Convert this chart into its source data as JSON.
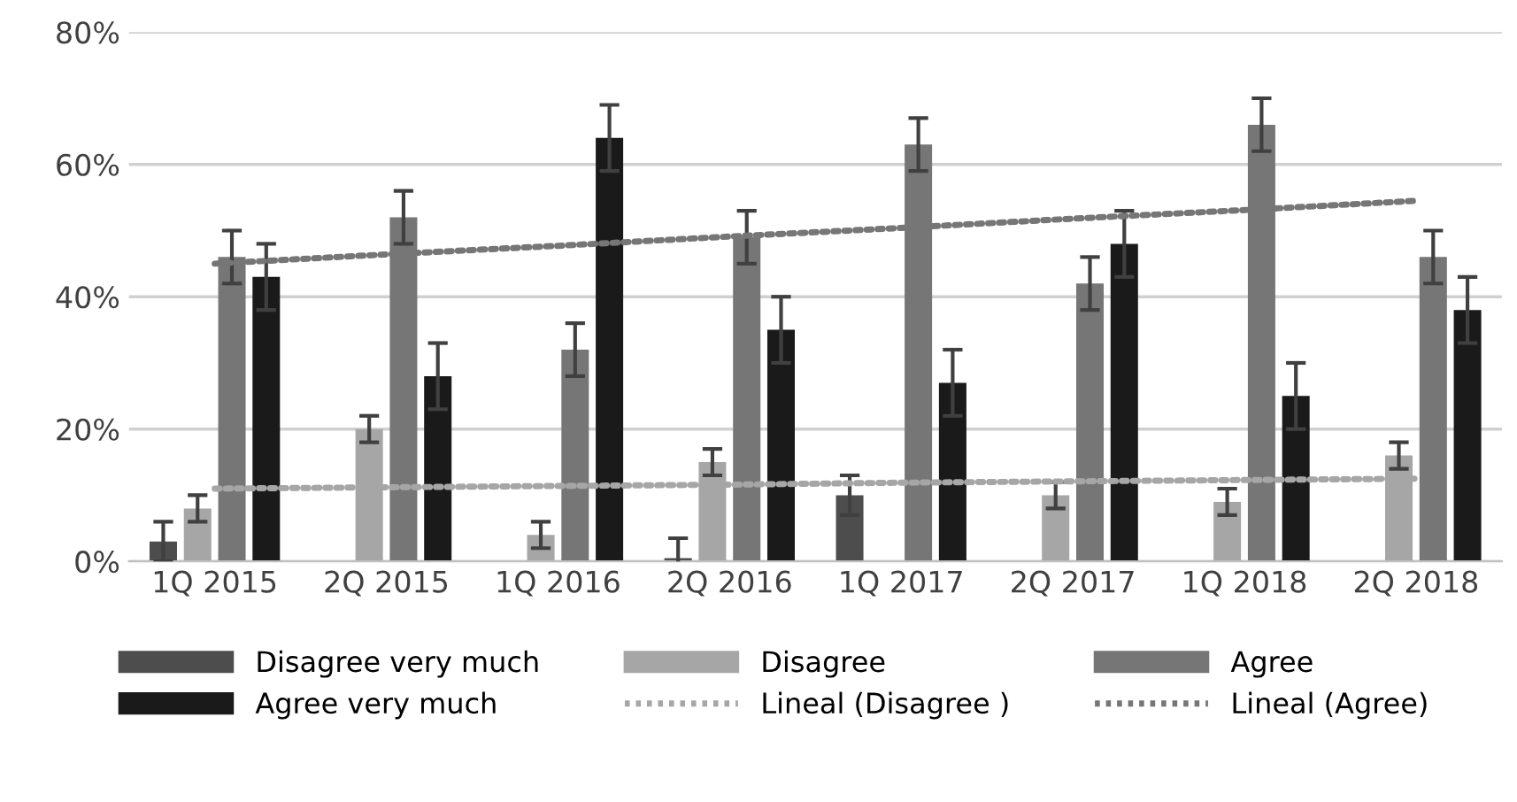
{
  "chart_data": {
    "type": "bar",
    "categories": [
      "1Q 2015",
      "2Q 2015",
      "1Q 2016",
      "2Q 2016",
      "1Q 2017",
      "2Q 2017",
      "1Q 2018",
      "2Q 2018"
    ],
    "series": [
      {
        "name": "Disagree very much",
        "color": "#4d4d4d",
        "values": [
          3,
          null,
          null,
          0.5,
          10,
          null,
          null,
          null
        ],
        "errors": [
          3,
          null,
          null,
          3,
          3,
          null,
          null,
          null
        ]
      },
      {
        "name": "Disagree",
        "color": "#a6a6a6",
        "values": [
          8,
          20,
          4,
          15,
          null,
          10,
          9,
          16
        ],
        "errors": [
          2,
          2,
          2,
          2,
          null,
          2,
          2,
          2
        ]
      },
      {
        "name": "Agree",
        "color": "#767676",
        "values": [
          46,
          52,
          32,
          49,
          63,
          42,
          66,
          46
        ],
        "errors": [
          4,
          4,
          4,
          4,
          4,
          4,
          4,
          4
        ]
      },
      {
        "name": "Agree very much",
        "color": "#1a1a1a",
        "values": [
          43,
          28,
          64,
          35,
          27,
          48,
          25,
          38
        ],
        "errors": [
          5,
          5,
          5,
          5,
          5,
          5,
          5,
          5
        ]
      },
      {
        "name": "Lineal (Disagree )",
        "type": "line",
        "line_style": "dotted",
        "color": "#a6a6a6",
        "values": [
          11,
          11.2,
          11.4,
          11.6,
          11.9,
          12.1,
          12.3,
          12.5
        ]
      },
      {
        "name": "Lineal (Agree)",
        "type": "line",
        "line_style": "dotted",
        "color": "#767676",
        "values": [
          45,
          46.4,
          47.7,
          49.1,
          50.4,
          51.8,
          53.1,
          54.5
        ]
      }
    ],
    "ylim": [
      0,
      80
    ],
    "yticks": [
      {
        "value": 0,
        "label": "0%"
      },
      {
        "value": 20,
        "label": "20%"
      },
      {
        "value": 40,
        "label": "40%"
      },
      {
        "value": 60,
        "label": "60%"
      },
      {
        "value": 80,
        "label": "80%"
      }
    ],
    "grid": "y",
    "legend": "bottom"
  }
}
